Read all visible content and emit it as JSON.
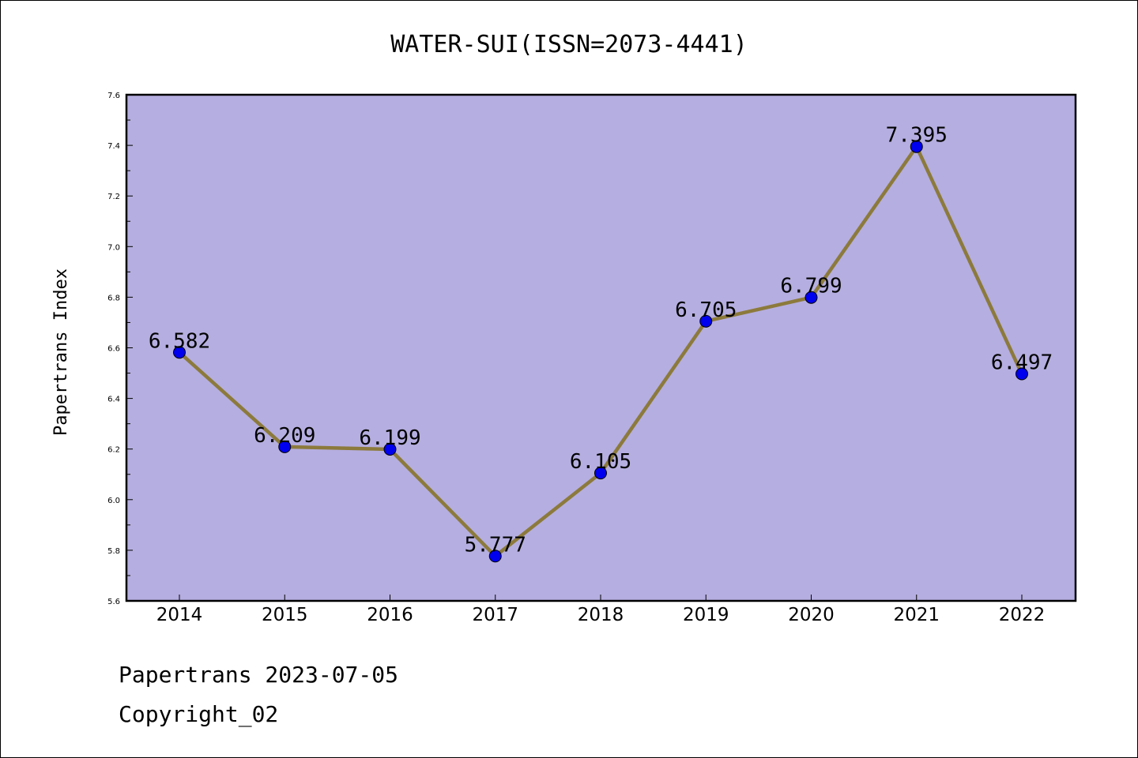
{
  "chart_data": {
    "type": "line",
    "title": "WATER-SUI(ISSN=2073-4441)",
    "xlabel": "",
    "ylabel": "Papertrans Index",
    "categories": [
      "2014",
      "2015",
      "2016",
      "2017",
      "2018",
      "2019",
      "2020",
      "2021",
      "2022"
    ],
    "values": [
      6.582,
      6.209,
      6.199,
      5.777,
      6.105,
      6.705,
      6.799,
      7.395,
      6.497
    ],
    "data_labels": [
      "6.582",
      "6.209",
      "6.199",
      "5.777",
      "6.105",
      "6.705",
      "6.799",
      "7.395",
      "6.497"
    ],
    "ylim": [
      5.6,
      7.6
    ],
    "yticks": [
      "5.6",
      "5.8",
      "6.0",
      "6.2",
      "6.4",
      "6.6",
      "6.8",
      "7.0",
      "7.2",
      "7.4",
      "7.6"
    ],
    "grid": false,
    "colors": {
      "plot_background": "#b5aee0",
      "line": "#8c7a3c",
      "marker": "#0000ee"
    }
  },
  "footer": {
    "date_line": "Papertrans 2023-07-05",
    "copyright": "Copyright_02"
  }
}
